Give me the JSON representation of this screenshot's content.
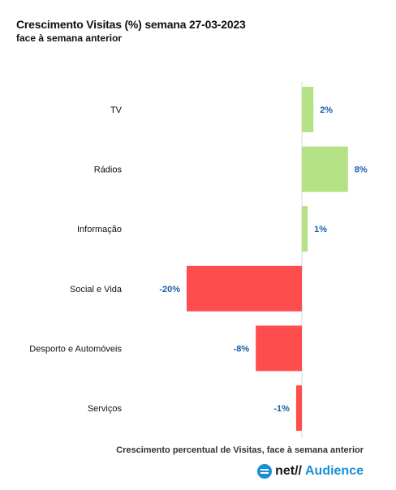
{
  "chart_data": {
    "type": "bar",
    "orientation": "horizontal",
    "title": "Crescimento Visitas (%) semana 27-03-2023",
    "subtitle": "face à semana anterior",
    "categories": [
      "TV",
      "Rádios",
      "Informação",
      "Social e Vida",
      "Desporto e Automóveis",
      "Serviços"
    ],
    "values": [
      2,
      8,
      1,
      -20,
      -8,
      -1
    ],
    "value_labels": [
      "2%",
      "8%",
      "1%",
      "-20%",
      "-8%",
      "-1%"
    ],
    "xlim": [
      -20,
      8
    ],
    "grid": false,
    "colors": {
      "positive": "#b3e183",
      "negative": "#ff4d4d",
      "label": "#1a5fa8"
    },
    "caption": "Crescimento percentual de Visitas, face à semana anterior"
  },
  "logo": {
    "net": "net//",
    "audience": "Audience",
    "icon": "netaudience-logo-icon"
  }
}
